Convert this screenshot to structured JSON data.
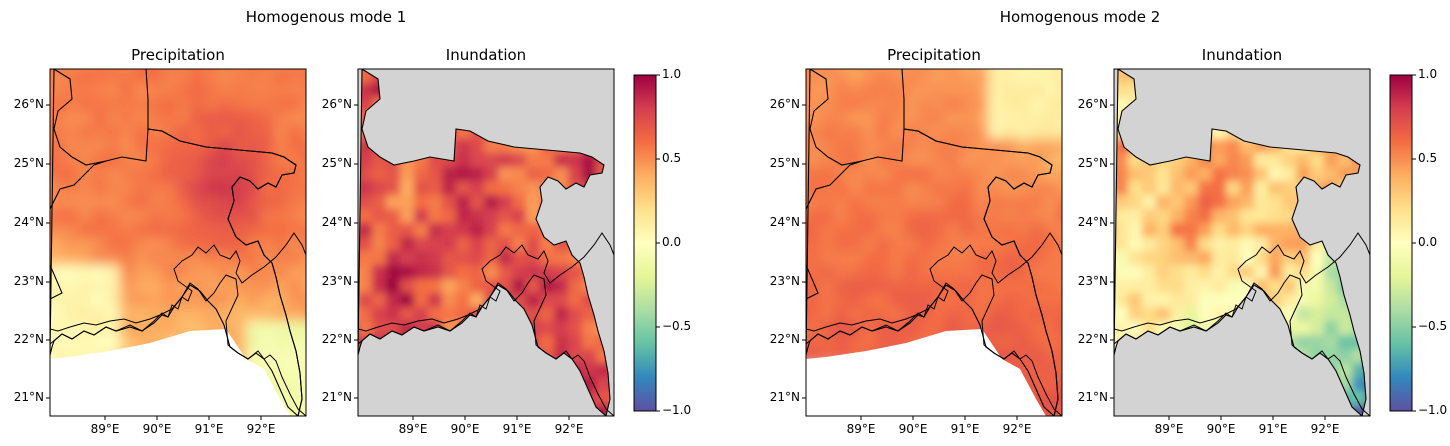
{
  "figure": {
    "modes": [
      {
        "title": "Homogenous mode 1",
        "panels": [
          {
            "title": "Precipitation",
            "field": "precip",
            "dominant": "positive"
          },
          {
            "title": "Inundation",
            "field": "inund",
            "dominant": "strong-positive"
          }
        ]
      },
      {
        "title": "Homogenous mode 2",
        "panels": [
          {
            "title": "Precipitation",
            "field": "precip",
            "dominant": "positive"
          },
          {
            "title": "Inundation",
            "field": "inund",
            "dominant": "mixed-negative-south"
          }
        ]
      }
    ],
    "lat_ticks": [
      "26°N",
      "25°N",
      "24°N",
      "23°N",
      "22°N",
      "21°N"
    ],
    "lon_ticks": [
      "89°E",
      "90°E",
      "91°E",
      "92°E"
    ],
    "colorbar": {
      "ticks": [
        "1.0",
        "0.5",
        "0.0",
        "−0.5",
        "−1.0"
      ],
      "range": [
        -1.0,
        1.0
      ],
      "colormap": "Spectral_r",
      "colors": [
        "#5e4fa2",
        "#3288bd",
        "#66c2a5",
        "#abdda4",
        "#e6f598",
        "#ffffbf",
        "#fee08b",
        "#fdae61",
        "#f46d43",
        "#d53e4f",
        "#9e0142"
      ]
    },
    "mask_color": "#d3d3d3",
    "border_color": "#000000"
  }
}
